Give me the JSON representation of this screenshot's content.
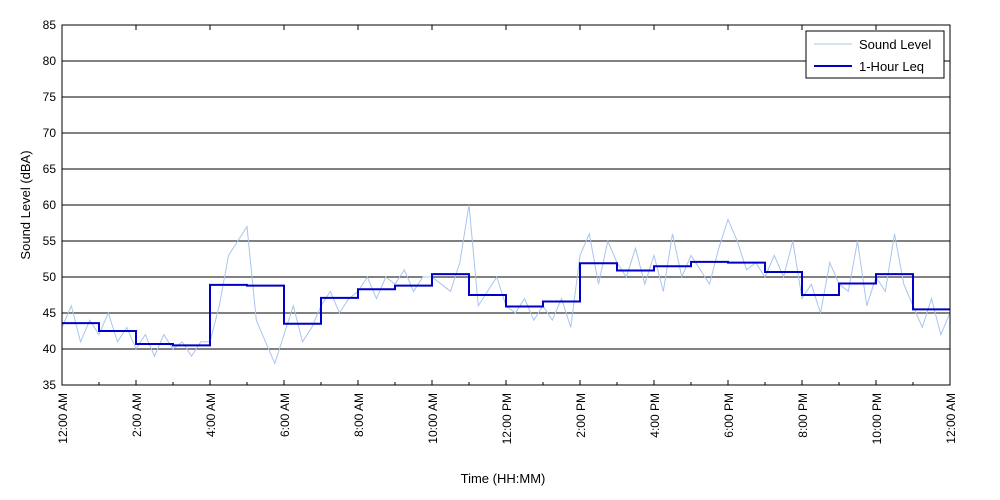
{
  "chart_data": {
    "type": "line",
    "title": "",
    "xlabel": "Time (HH:MM)",
    "ylabel": "Sound Level (dBA)",
    "ylim": [
      35,
      85
    ],
    "xlim": [
      0,
      24
    ],
    "x_unit": "hours since 12:00 AM",
    "grid": "horizontal",
    "legend_position": "top-right",
    "y_ticks": [
      35,
      40,
      45,
      50,
      55,
      60,
      65,
      70,
      75,
      80,
      85
    ],
    "x_ticks": [
      0,
      2,
      4,
      6,
      8,
      10,
      12,
      14,
      16,
      18,
      20,
      22,
      24
    ],
    "x_tick_labels": [
      "12:00 AM",
      "2:00 AM",
      "4:00 AM",
      "6:00 AM",
      "8:00 AM",
      "10:00 AM",
      "12:00 PM",
      "2:00 PM",
      "4:00 PM",
      "6:00 PM",
      "8:00 PM",
      "10:00 PM",
      "12:00 AM"
    ],
    "series": [
      {
        "name": "Sound Level",
        "color": "#a9c4ee",
        "style": "thin-line",
        "x": [
          0.0,
          0.25,
          0.5,
          0.75,
          1.0,
          1.25,
          1.5,
          1.75,
          2.0,
          2.25,
          2.5,
          2.75,
          3.0,
          3.25,
          3.5,
          3.75,
          4.0,
          4.25,
          4.5,
          4.75,
          5.0,
          5.25,
          5.5,
          5.75,
          6.0,
          6.25,
          6.5,
          6.75,
          7.0,
          7.25,
          7.5,
          7.75,
          8.0,
          8.25,
          8.5,
          8.75,
          9.0,
          9.25,
          9.5,
          9.75,
          10.0,
          10.25,
          10.5,
          10.75,
          11.0,
          11.25,
          11.5,
          11.75,
          12.0,
          12.25,
          12.5,
          12.75,
          13.0,
          13.25,
          13.5,
          13.75,
          14.0,
          14.25,
          14.5,
          14.75,
          15.0,
          15.25,
          15.5,
          15.75,
          16.0,
          16.25,
          16.5,
          16.75,
          17.0,
          17.25,
          17.5,
          17.75,
          18.0,
          18.25,
          18.5,
          18.75,
          19.0,
          19.25,
          19.5,
          19.75,
          20.0,
          20.25,
          20.5,
          20.75,
          21.0,
          21.25,
          21.5,
          21.75,
          22.0,
          22.25,
          22.5,
          22.75,
          23.0,
          23.25,
          23.5,
          23.75,
          24.0
        ],
        "values": [
          43,
          46,
          41,
          44,
          42,
          45,
          41,
          43,
          40,
          42,
          39,
          42,
          40,
          41,
          39,
          41,
          41,
          46,
          53,
          55,
          57,
          44,
          41,
          38,
          42,
          46,
          41,
          43,
          46,
          48,
          45,
          47,
          48,
          50,
          47,
          50,
          49,
          51,
          48,
          50,
          50,
          49,
          48,
          52,
          60,
          46,
          48,
          50,
          46,
          45,
          47,
          44,
          46,
          44,
          47,
          43,
          53,
          56,
          49,
          55,
          52,
          50,
          54,
          49,
          53,
          48,
          56,
          50,
          53,
          51,
          49,
          54,
          58,
          55,
          51,
          52,
          50,
          53,
          50,
          55,
          47,
          49,
          45,
          52,
          49,
          48,
          55,
          46,
          50,
          48,
          56,
          49,
          46,
          43,
          47,
          42,
          45
        ]
      },
      {
        "name": "1-Hour Leq",
        "color": "#0000c8",
        "style": "step-line",
        "x": [
          0,
          1,
          2,
          3,
          4,
          5,
          6,
          7,
          8,
          9,
          10,
          11,
          12,
          13,
          14,
          15,
          16,
          17,
          18,
          19,
          20,
          21,
          22,
          23
        ],
        "values": [
          43.6,
          42.5,
          40.7,
          40.5,
          48.9,
          48.8,
          43.5,
          47.1,
          48.3,
          48.8,
          50.4,
          47.5,
          45.9,
          46.6,
          51.9,
          50.9,
          51.5,
          52.1,
          52.0,
          50.7,
          47.5,
          49.1,
          50.4,
          45.5
        ]
      }
    ]
  }
}
